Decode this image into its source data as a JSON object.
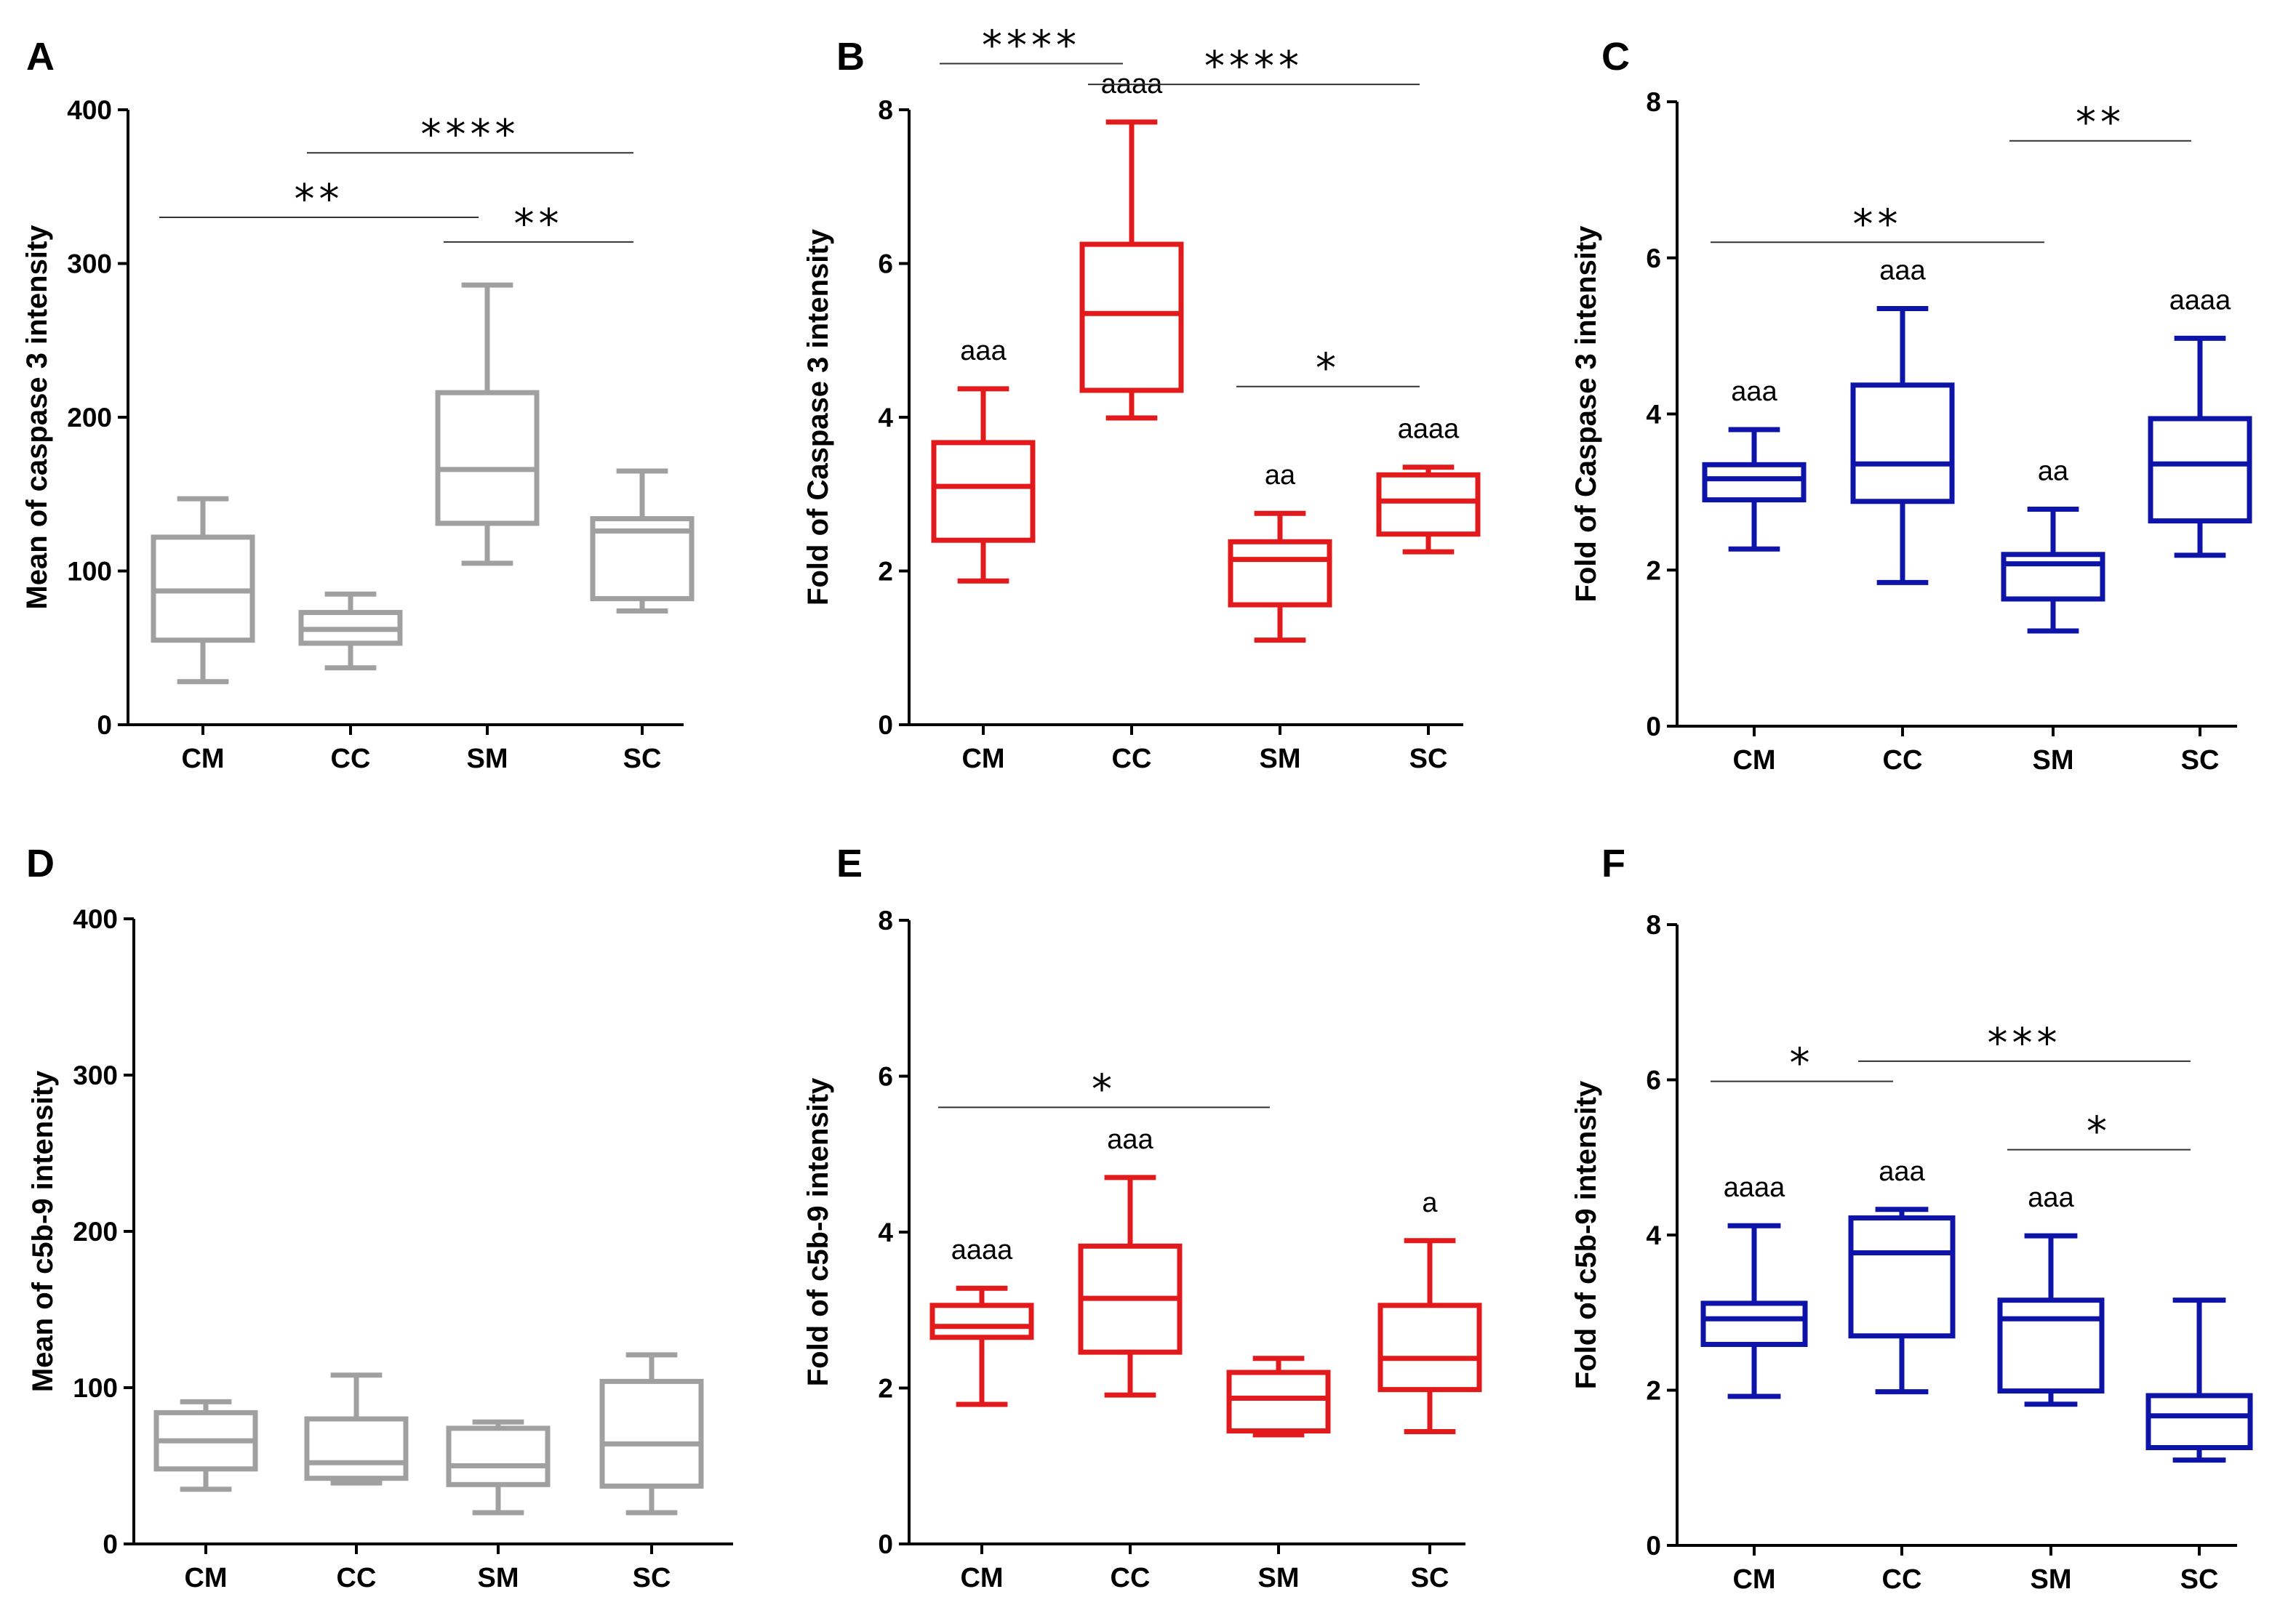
{
  "chart_data": [
    {
      "panel": "A",
      "type": "box",
      "color": "#a0a0a0",
      "ylabel": "Mean of caspase 3 intensity",
      "ylim": [
        0,
        400
      ],
      "yticks": [
        0,
        100,
        200,
        300,
        400
      ],
      "categories": [
        "CM",
        "CC",
        "SM",
        "SC"
      ],
      "boxes": [
        {
          "min": 28,
          "q1": 55,
          "median": 87,
          "q3": 122,
          "max": 147
        },
        {
          "min": 37,
          "q1": 53,
          "median": 62,
          "q3": 73,
          "max": 85
        },
        {
          "min": 105,
          "q1": 131,
          "median": 166,
          "q3": 216,
          "max": 286
        },
        {
          "min": 74,
          "q1": 82,
          "median": 126,
          "q3": 134,
          "max": 165
        }
      ],
      "letters": [
        "",
        "",
        "",
        ""
      ],
      "comparisons": [
        {
          "from": 0,
          "to": 2,
          "y": 330,
          "label": "**"
        },
        {
          "from": 1,
          "to": 3,
          "y": 372,
          "label": "****"
        },
        {
          "from": 2,
          "to": 3,
          "y": 314,
          "label": "**"
        }
      ]
    },
    {
      "panel": "B",
      "type": "box",
      "color": "#e31a1c",
      "ylabel": "Fold of Caspase 3 intensity",
      "ylim": [
        0,
        8
      ],
      "yticks": [
        0,
        2,
        4,
        6,
        8
      ],
      "categories": [
        "CM",
        "CC",
        "SM",
        "SC"
      ],
      "boxes": [
        {
          "min": 1.87,
          "q1": 2.4,
          "median": 3.1,
          "q3": 3.67,
          "max": 4.37
        },
        {
          "min": 3.99,
          "q1": 4.35,
          "median": 5.35,
          "q3": 6.25,
          "max": 7.84
        },
        {
          "min": 1.1,
          "q1": 1.56,
          "median": 2.15,
          "q3": 2.38,
          "max": 2.75
        },
        {
          "min": 2.25,
          "q1": 2.48,
          "median": 2.91,
          "q3": 3.25,
          "max": 3.35
        }
      ],
      "letters": [
        "aaa",
        "aaaa",
        "aa",
        "aaaa"
      ],
      "comparisons": [
        {
          "from": 0,
          "to": 1,
          "y": 8.6,
          "label": "****"
        },
        {
          "from": 1,
          "to": 3,
          "y": 8.33,
          "label": "****"
        },
        {
          "from": 2,
          "to": 3,
          "y": 4.4,
          "label": "*"
        }
      ]
    },
    {
      "panel": "C",
      "type": "box",
      "color": "#0f14a8",
      "ylabel": "Fold of Caspase 3 intensity",
      "ylim": [
        0,
        8
      ],
      "yticks": [
        0,
        2,
        4,
        6,
        8
      ],
      "categories": [
        "CM",
        "CC",
        "SM",
        "SC"
      ],
      "boxes": [
        {
          "min": 2.27,
          "q1": 2.9,
          "median": 3.17,
          "q3": 3.35,
          "max": 3.8
        },
        {
          "min": 1.84,
          "q1": 2.88,
          "median": 3.36,
          "q3": 4.37,
          "max": 5.35
        },
        {
          "min": 1.22,
          "q1": 1.63,
          "median": 2.08,
          "q3": 2.2,
          "max": 2.78
        },
        {
          "min": 2.19,
          "q1": 2.63,
          "median": 3.36,
          "q3": 3.94,
          "max": 4.97
        }
      ],
      "letters": [
        "aaa",
        "aaa",
        "aa",
        "aaaa"
      ],
      "comparisons": [
        {
          "from": 0,
          "to": 2,
          "y": 6.2,
          "label": "**"
        },
        {
          "from": 2,
          "to": 3,
          "y": 7.5,
          "label": "**"
        }
      ]
    },
    {
      "panel": "D",
      "type": "box",
      "color": "#a0a0a0",
      "ylabel": "Mean of c5b-9 intensity",
      "ylim": [
        0,
        400
      ],
      "yticks": [
        0,
        100,
        200,
        300,
        400
      ],
      "categories": [
        "CM",
        "CC",
        "SM",
        "SC"
      ],
      "boxes": [
        {
          "min": 35,
          "q1": 48,
          "median": 66,
          "q3": 84,
          "max": 91
        },
        {
          "min": 39,
          "q1": 42,
          "median": 52,
          "q3": 80,
          "max": 108
        },
        {
          "min": 20,
          "q1": 38,
          "median": 50,
          "q3": 74,
          "max": 78
        },
        {
          "min": 20,
          "q1": 37,
          "median": 64,
          "q3": 104,
          "max": 121
        }
      ],
      "letters": [
        "",
        "",
        "",
        ""
      ],
      "comparisons": []
    },
    {
      "panel": "E",
      "type": "box",
      "color": "#e31a1c",
      "ylabel": "Fold of c5b-9 intensity",
      "ylim": [
        0,
        8
      ],
      "yticks": [
        0,
        2,
        4,
        6,
        8
      ],
      "categories": [
        "CM",
        "CC",
        "SM",
        "SC"
      ],
      "boxes": [
        {
          "min": 1.79,
          "q1": 2.65,
          "median": 2.79,
          "q3": 3.06,
          "max": 3.28
        },
        {
          "min": 1.91,
          "q1": 2.46,
          "median": 3.15,
          "q3": 3.82,
          "max": 4.7
        },
        {
          "min": 1.4,
          "q1": 1.45,
          "median": 1.87,
          "q3": 2.2,
          "max": 2.38
        },
        {
          "min": 1.44,
          "q1": 1.98,
          "median": 2.38,
          "q3": 3.06,
          "max": 3.89
        }
      ],
      "letters": [
        "aaaa",
        "aaa",
        "",
        "a"
      ],
      "comparisons": [
        {
          "from": 0,
          "to": 2,
          "y": 5.6,
          "label": "*"
        }
      ]
    },
    {
      "panel": "F",
      "type": "box",
      "color": "#0f14a8",
      "ylabel": "Fold of c5b-9 intensity",
      "ylim": [
        0,
        8
      ],
      "yticks": [
        0,
        2,
        4,
        6,
        8
      ],
      "categories": [
        "CM",
        "CC",
        "SM",
        "SC"
      ],
      "boxes": [
        {
          "min": 1.92,
          "q1": 2.59,
          "median": 2.92,
          "q3": 3.12,
          "max": 4.12
        },
        {
          "min": 1.98,
          "q1": 2.7,
          "median": 3.77,
          "q3": 4.22,
          "max": 4.33
        },
        {
          "min": 1.82,
          "q1": 1.99,
          "median": 2.92,
          "q3": 3.16,
          "max": 3.99
        },
        {
          "min": 1.1,
          "q1": 1.26,
          "median": 1.67,
          "q3": 1.93,
          "max": 3.16
        }
      ],
      "letters": [
        "aaaa",
        "aaa",
        "aaa",
        ""
      ],
      "comparisons": [
        {
          "from": 0,
          "to": 1,
          "y": 5.98,
          "label": "*"
        },
        {
          "from": 1,
          "to": 3,
          "y": 6.24,
          "label": "***"
        },
        {
          "from": 2,
          "to": 3,
          "y": 5.1,
          "label": "*"
        }
      ]
    }
  ]
}
